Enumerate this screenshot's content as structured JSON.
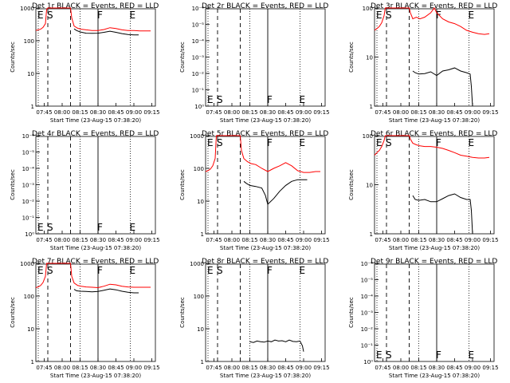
{
  "figure": {
    "xlabel": "Start Time (23-Aug-15 07:38:20)",
    "ylabel": "Counts/sec",
    "x_tick_labels": [
      "07:45",
      "08:00",
      "08:15",
      "08:30",
      "08:45",
      "09:00",
      "09:15"
    ],
    "legend_text": "BLACK = Events, RED = LLD",
    "colors": {
      "events": "#000000",
      "lld": "#ff0000",
      "background": "#ffffff"
    }
  },
  "chart_data": [
    {
      "type": "line",
      "title": "Det 1r BLACK = Events, RED = LLD",
      "xlim": [
        "07:38",
        "09:18"
      ],
      "ylim": [
        1,
        1000
      ],
      "yscale": "log",
      "y_tick_labels": [
        "1",
        "10",
        "100",
        "1000"
      ],
      "markers": [
        {
          "text": "E",
          "x": "07:40"
        },
        {
          "text": "S",
          "x": "07:48"
        },
        {
          "text": "F",
          "x": "08:30"
        },
        {
          "text": "E",
          "x": "08:57"
        }
      ],
      "series": [
        {
          "color": "#ff0000",
          "x": [
            "07:38",
            "07:40",
            "07:42",
            "07:44",
            "07:46",
            "07:47",
            "07:48",
            "07:49",
            "08:07",
            "08:08",
            "08:10",
            "08:13",
            "08:16",
            "08:20",
            "08:25",
            "08:30",
            "08:35",
            "08:40",
            "08:45",
            "08:50",
            "08:55",
            "09:00",
            "09:05",
            "09:10",
            "09:14"
          ],
          "y": [
            205,
            215,
            225,
            255,
            330,
            900,
            1000,
            1000,
            1000,
            500,
            280,
            240,
            225,
            215,
            205,
            205,
            220,
            250,
            235,
            215,
            205,
            205,
            200,
            200,
            200
          ]
        },
        {
          "color": "#000000",
          "x": [
            "08:10",
            "08:12",
            "08:15",
            "08:20",
            "08:25",
            "08:30",
            "08:35",
            "08:40",
            "08:45",
            "08:50",
            "08:55",
            "09:00",
            "09:04"
          ],
          "y": [
            230,
            205,
            185,
            170,
            168,
            170,
            180,
            195,
            180,
            165,
            155,
            150,
            150
          ]
        }
      ]
    },
    {
      "type": "line",
      "title": "Det 2r BLACK = Events, RED = LLD",
      "xlim": [
        "07:38",
        "09:18"
      ],
      "ylim": [
        1,
        1000000
      ],
      "yscale": "log",
      "y_tick_labels": [
        "10⁰",
        "10⁻¹",
        "10⁻²",
        "10⁻³",
        "10⁻⁴",
        "10⁻⁵",
        "10⁻⁶"
      ],
      "markers": [
        {
          "text": "E",
          "x": "07:40"
        },
        {
          "text": "S",
          "x": "07:48"
        },
        {
          "text": "F",
          "x": "08:30"
        },
        {
          "text": "E",
          "x": "08:57"
        }
      ],
      "series": []
    },
    {
      "type": "line",
      "title": "Det 3r BLACK = Events, RED = LLD",
      "xlim": [
        "07:38",
        "09:18"
      ],
      "ylim": [
        1,
        100
      ],
      "yscale": "log",
      "y_tick_labels": [
        "1",
        "10",
        "100"
      ],
      "markers": [
        {
          "text": "E",
          "x": "07:40"
        },
        {
          "text": "S",
          "x": "07:48"
        },
        {
          "text": "F",
          "x": "08:30"
        },
        {
          "text": "E",
          "x": "08:57"
        }
      ],
      "series": [
        {
          "color": "#ff0000",
          "x": [
            "07:38",
            "07:40",
            "07:42",
            "07:44",
            "07:46",
            "07:47",
            "07:48",
            "08:07",
            "08:08",
            "08:10",
            "08:13",
            "08:16",
            "08:20",
            "08:25",
            "08:28",
            "08:30",
            "08:35",
            "08:40",
            "08:45",
            "08:50",
            "08:55",
            "09:00",
            "09:05",
            "09:10",
            "09:14"
          ],
          "y": [
            35,
            38,
            42,
            50,
            70,
            100,
            100,
            100,
            80,
            60,
            65,
            60,
            65,
            80,
            100,
            80,
            60,
            52,
            48,
            42,
            35,
            32,
            30,
            29,
            30
          ]
        },
        {
          "color": "#000000",
          "x": [
            "08:10",
            "08:12",
            "08:15",
            "08:20",
            "08:25",
            "08:30",
            "08:35",
            "08:40",
            "08:45",
            "08:50",
            "08:55",
            "08:58",
            "08:59",
            "09:00"
          ],
          "y": [
            5.2,
            4.8,
            4.5,
            4.6,
            5.0,
            4.2,
            5.2,
            5.5,
            6.0,
            5.2,
            4.8,
            4.5,
            2.5,
            1.0
          ]
        }
      ]
    },
    {
      "type": "line",
      "title": "Det 4r BLACK = Events, RED = LLD",
      "xlim": [
        "07:38",
        "09:18"
      ],
      "ylim": [
        1,
        1000000
      ],
      "yscale": "log",
      "y_tick_labels": [
        "10⁰",
        "10⁻¹",
        "10⁻²",
        "10⁻³",
        "10⁻⁴",
        "10⁻⁵",
        "10⁻⁶"
      ],
      "markers": [
        {
          "text": "E",
          "x": "07:40"
        },
        {
          "text": "S",
          "x": "07:48"
        },
        {
          "text": "F",
          "x": "08:30"
        },
        {
          "text": "E",
          "x": "08:57"
        }
      ],
      "series": []
    },
    {
      "type": "line",
      "title": "Det 5r BLACK = Events, RED = LLD",
      "xlim": [
        "07:38",
        "09:18"
      ],
      "ylim": [
        1,
        1000
      ],
      "yscale": "log",
      "y_tick_labels": [
        "1",
        "10",
        "100",
        "1000"
      ],
      "markers": [
        {
          "text": "E",
          "x": "07:40"
        },
        {
          "text": "S",
          "x": "07:48"
        },
        {
          "text": "F",
          "x": "08:30"
        },
        {
          "text": "E",
          "x": "08:57"
        }
      ],
      "series": [
        {
          "color": "#ff0000",
          "x": [
            "07:38",
            "07:40",
            "07:42",
            "07:44",
            "07:46",
            "07:47",
            "07:48",
            "08:07",
            "08:08",
            "08:10",
            "08:13",
            "08:16",
            "08:20",
            "08:25",
            "08:30",
            "08:35",
            "08:40",
            "08:45",
            "08:50",
            "08:55",
            "09:00",
            "09:05",
            "09:10",
            "09:14"
          ],
          "y": [
            80,
            85,
            95,
            120,
            200,
            1000,
            1000,
            1000,
            350,
            200,
            160,
            140,
            130,
            100,
            80,
            100,
            120,
            150,
            120,
            85,
            75,
            75,
            80,
            80
          ]
        },
        {
          "color": "#000000",
          "x": [
            "08:10",
            "08:12",
            "08:15",
            "08:20",
            "08:25",
            "08:28",
            "08:30",
            "08:35",
            "08:40",
            "08:45",
            "08:50",
            "08:55",
            "09:00",
            "09:03"
          ],
          "y": [
            40,
            35,
            30,
            28,
            25,
            15,
            8,
            12,
            20,
            30,
            40,
            45,
            45,
            45
          ]
        }
      ]
    },
    {
      "type": "line",
      "title": "Det 6r BLACK = Events, RED = LLD",
      "xlim": [
        "07:38",
        "09:18"
      ],
      "ylim": [
        1,
        100
      ],
      "yscale": "log",
      "y_tick_labels": [
        "1",
        "10",
        "100"
      ],
      "markers": [
        {
          "text": "E",
          "x": "07:40"
        },
        {
          "text": "S",
          "x": "07:48"
        },
        {
          "text": "F",
          "x": "08:30"
        },
        {
          "text": "E",
          "x": "08:57"
        }
      ],
      "series": [
        {
          "color": "#ff0000",
          "x": [
            "07:38",
            "07:40",
            "07:42",
            "07:44",
            "07:46",
            "07:47",
            "07:48",
            "08:07",
            "08:08",
            "08:10",
            "08:13",
            "08:16",
            "08:20",
            "08:25",
            "08:30",
            "08:35",
            "08:40",
            "08:45",
            "08:50",
            "08:55",
            "09:00",
            "09:05",
            "09:10",
            "09:14"
          ],
          "y": [
            40,
            45,
            50,
            60,
            80,
            100,
            100,
            100,
            85,
            70,
            65,
            62,
            60,
            60,
            58,
            55,
            50,
            45,
            40,
            38,
            36,
            35,
            35,
            36
          ]
        },
        {
          "color": "#000000",
          "x": [
            "08:10",
            "08:12",
            "08:15",
            "08:20",
            "08:25",
            "08:30",
            "08:35",
            "08:40",
            "08:45",
            "08:50",
            "08:55",
            "08:58",
            "08:59",
            "09:00"
          ],
          "y": [
            6.0,
            5.0,
            4.8,
            5.0,
            4.5,
            4.5,
            5.2,
            6.0,
            6.5,
            5.5,
            5.0,
            5.0,
            3.0,
            1.0
          ]
        }
      ]
    },
    {
      "type": "line",
      "title": "Det 7r BLACK = Events, RED = LLD",
      "xlim": [
        "07:38",
        "09:18"
      ],
      "ylim": [
        1,
        1000
      ],
      "yscale": "log",
      "y_tick_labels": [
        "1",
        "10",
        "100",
        "1000"
      ],
      "markers": [
        {
          "text": "E",
          "x": "07:40"
        },
        {
          "text": "S",
          "x": "07:48"
        },
        {
          "text": "F",
          "x": "08:30"
        },
        {
          "text": "E",
          "x": "08:57"
        }
      ],
      "series": [
        {
          "color": "#ff0000",
          "x": [
            "07:38",
            "07:40",
            "07:42",
            "07:44",
            "07:46",
            "07:47",
            "07:48",
            "08:07",
            "08:08",
            "08:10",
            "08:13",
            "08:16",
            "08:20",
            "08:25",
            "08:30",
            "08:35",
            "08:40",
            "08:45",
            "08:50",
            "08:55",
            "09:00",
            "09:05",
            "09:10",
            "09:14"
          ],
          "y": [
            180,
            190,
            210,
            260,
            400,
            1000,
            1000,
            1000,
            400,
            250,
            210,
            200,
            190,
            185,
            180,
            200,
            230,
            220,
            200,
            190,
            185,
            185,
            185,
            185
          ]
        },
        {
          "color": "#000000",
          "x": [
            "08:10",
            "08:12",
            "08:15",
            "08:20",
            "08:25",
            "08:30",
            "08:35",
            "08:40",
            "08:45",
            "08:50",
            "08:55",
            "09:00",
            "09:04"
          ],
          "y": [
            160,
            145,
            140,
            138,
            135,
            138,
            150,
            165,
            155,
            140,
            130,
            125,
            125
          ]
        }
      ]
    },
    {
      "type": "line",
      "title": "Det 8r BLACK = Events, RED = LLD",
      "xlim": [
        "07:38",
        "09:18"
      ],
      "ylim": [
        1,
        1000
      ],
      "yscale": "log",
      "y_tick_labels": [
        "1",
        "10",
        "100",
        "1000"
      ],
      "markers": [
        {
          "text": "E",
          "x": "07:40"
        },
        {
          "text": "S",
          "x": "07:48"
        },
        {
          "text": "F",
          "x": "08:30"
        },
        {
          "text": "E",
          "x": "08:57"
        }
      ],
      "series": [
        {
          "color": "#000000",
          "x": [
            "08:15",
            "08:18",
            "08:21",
            "08:24",
            "08:27",
            "08:30",
            "08:33",
            "08:36",
            "08:39",
            "08:42",
            "08:45",
            "08:48",
            "08:51",
            "08:54",
            "08:57",
            "08:59",
            "09:00"
          ],
          "y": [
            4.0,
            3.8,
            4.2,
            4.0,
            3.9,
            4.2,
            4.0,
            4.5,
            4.2,
            4.3,
            4.0,
            4.5,
            4.1,
            4.0,
            4.2,
            3.0,
            2.0
          ]
        }
      ]
    },
    {
      "type": "line",
      "title": "Det 9r BLACK = Events, RED = LLD",
      "xlim": [
        "07:38",
        "09:18"
      ],
      "ylim": [
        1,
        1000000
      ],
      "yscale": "log",
      "y_tick_labels": [
        "10⁰",
        "10⁻¹",
        "10⁻²",
        "10⁻³",
        "10⁻⁴",
        "10⁻⁵",
        "10⁻⁶"
      ],
      "markers": [
        {
          "text": "E",
          "x": "07:40"
        },
        {
          "text": "S",
          "x": "07:48"
        },
        {
          "text": "F",
          "x": "08:30"
        },
        {
          "text": "E",
          "x": "08:57"
        }
      ],
      "series": []
    }
  ]
}
